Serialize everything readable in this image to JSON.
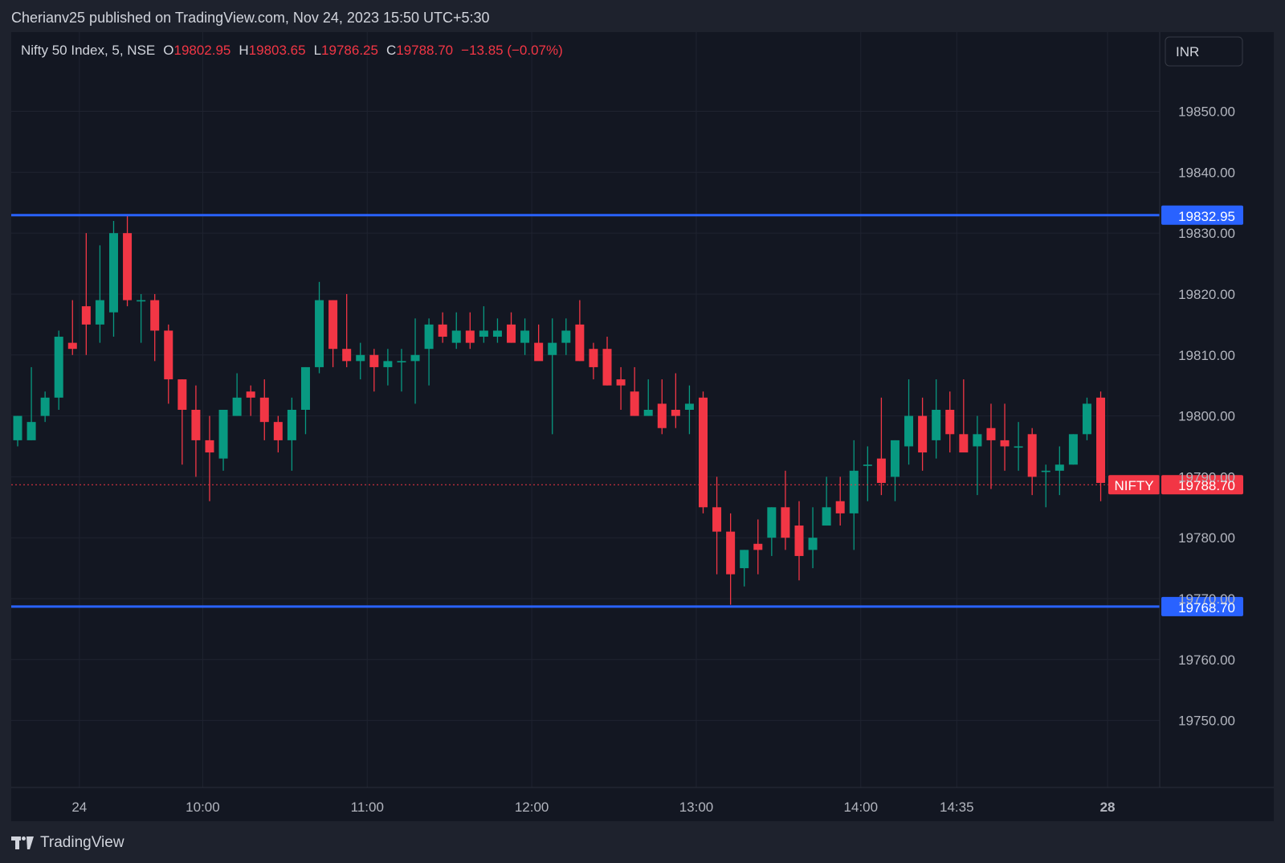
{
  "header": {
    "published_text": "Cherianv25 published on TradingView.com, Nov 24, 2023 15:50 UTC+5:30"
  },
  "footer": {
    "brand": "TradingView"
  },
  "currency_button": "INR",
  "chart_data": {
    "type": "candlestick",
    "symbol_info": {
      "name": "Nifty 50 Index, 5, NSE",
      "open_label": "O",
      "open": "19802.95",
      "high_label": "H",
      "high": "19803.65",
      "low_label": "L",
      "low": "19786.25",
      "close_label": "C",
      "close": "19788.70",
      "change": "−13.85 (−0.07%)"
    },
    "y_axis": {
      "range": [
        19739,
        19863
      ],
      "ticks": [
        "19850.00",
        "19840.00",
        "19830.00",
        "19820.00",
        "19810.00",
        "19800.00",
        "19790.00",
        "19780.00",
        "19770.00",
        "19760.00",
        "19750.00"
      ]
    },
    "x_axis": {
      "ticks": [
        {
          "label": "24",
          "bar": 4.5,
          "bold": false
        },
        {
          "label": "10:00",
          "bar": 13.5,
          "bold": false
        },
        {
          "label": "11:00",
          "bar": 25.5,
          "bold": false
        },
        {
          "label": "12:00",
          "bar": 37.5,
          "bold": false
        },
        {
          "label": "13:00",
          "bar": 49.5,
          "bold": false
        },
        {
          "label": "14:00",
          "bar": 61.5,
          "bold": false
        },
        {
          "label": "14:35",
          "bar": 68.5,
          "bold": false
        },
        {
          "label": "28",
          "bar": 79.5,
          "bold": true
        }
      ]
    },
    "horizontal_lines": [
      {
        "value": 19832.95,
        "label": "19832.95",
        "color": "#2962ff"
      },
      {
        "value": 19768.7,
        "label": "19768.70",
        "color": "#2962ff"
      }
    ],
    "last_price": {
      "value": 19788.7,
      "label": "19788.70",
      "symbol": "NIFTY",
      "color": "#f23645"
    },
    "colors": {
      "up": "#089981",
      "down": "#f23645"
    },
    "candles": [
      {
        "o": 19796,
        "h": 19800,
        "l": 19795,
        "c": 19800
      },
      {
        "o": 19796,
        "h": 19808,
        "l": 19796,
        "c": 19799
      },
      {
        "o": 19800,
        "h": 19804,
        "l": 19799,
        "c": 19803
      },
      {
        "o": 19803,
        "h": 19814,
        "l": 19801,
        "c": 19813
      },
      {
        "o": 19812,
        "h": 19819,
        "l": 19810,
        "c": 19811
      },
      {
        "o": 19818,
        "h": 19830,
        "l": 19810,
        "c": 19815
      },
      {
        "o": 19815,
        "h": 19828,
        "l": 19812,
        "c": 19819
      },
      {
        "o": 19817,
        "h": 19832,
        "l": 19813,
        "c": 19830
      },
      {
        "o": 19830,
        "h": 19833,
        "l": 19818,
        "c": 19819
      },
      {
        "o": 19819,
        "h": 19820,
        "l": 19812,
        "c": 19819
      },
      {
        "o": 19819,
        "h": 19820,
        "l": 19809,
        "c": 19814
      },
      {
        "o": 19814,
        "h": 19815,
        "l": 19802,
        "c": 19806
      },
      {
        "o": 19806,
        "h": 19806,
        "l": 19792,
        "c": 19801
      },
      {
        "o": 19801,
        "h": 19805,
        "l": 19790,
        "c": 19796
      },
      {
        "o": 19796,
        "h": 19800,
        "l": 19786,
        "c": 19794
      },
      {
        "o": 19793,
        "h": 19801,
        "l": 19791,
        "c": 19801
      },
      {
        "o": 19800,
        "h": 19807,
        "l": 19800,
        "c": 19803
      },
      {
        "o": 19804,
        "h": 19805,
        "l": 19800,
        "c": 19803
      },
      {
        "o": 19803,
        "h": 19806,
        "l": 19796,
        "c": 19799
      },
      {
        "o": 19799,
        "h": 19800,
        "l": 19794,
        "c": 19796
      },
      {
        "o": 19796,
        "h": 19803,
        "l": 19791,
        "c": 19801
      },
      {
        "o": 19801,
        "h": 19808,
        "l": 19797,
        "c": 19808
      },
      {
        "o": 19808,
        "h": 19822,
        "l": 19807,
        "c": 19819
      },
      {
        "o": 19819,
        "h": 19819,
        "l": 19808,
        "c": 19811
      },
      {
        "o": 19811,
        "h": 19820,
        "l": 19808,
        "c": 19809
      },
      {
        "o": 19809,
        "h": 19812,
        "l": 19806,
        "c": 19810
      },
      {
        "o": 19810,
        "h": 19811,
        "l": 19804,
        "c": 19808
      },
      {
        "o": 19808,
        "h": 19811,
        "l": 19805,
        "c": 19809
      },
      {
        "o": 19809,
        "h": 19811,
        "l": 19804,
        "c": 19809
      },
      {
        "o": 19809,
        "h": 19816,
        "l": 19802,
        "c": 19810
      },
      {
        "o": 19811,
        "h": 19816,
        "l": 19805,
        "c": 19815
      },
      {
        "o": 19815,
        "h": 19817,
        "l": 19812,
        "c": 19813
      },
      {
        "o": 19812,
        "h": 19817,
        "l": 19811,
        "c": 19814
      },
      {
        "o": 19814,
        "h": 19817,
        "l": 19811,
        "c": 19812
      },
      {
        "o": 19813,
        "h": 19818,
        "l": 19812,
        "c": 19814
      },
      {
        "o": 19813,
        "h": 19816,
        "l": 19812,
        "c": 19814
      },
      {
        "o": 19815,
        "h": 19817,
        "l": 19812,
        "c": 19812
      },
      {
        "o": 19812,
        "h": 19816,
        "l": 19810,
        "c": 19814
      },
      {
        "o": 19812,
        "h": 19815,
        "l": 19810,
        "c": 19809
      },
      {
        "o": 19810,
        "h": 19816,
        "l": 19797,
        "c": 19812
      },
      {
        "o": 19812,
        "h": 19816,
        "l": 19810,
        "c": 19814
      },
      {
        "o": 19815,
        "h": 19819,
        "l": 19809,
        "c": 19809
      },
      {
        "o": 19811,
        "h": 19812,
        "l": 19806,
        "c": 19808
      },
      {
        "o": 19811,
        "h": 19813,
        "l": 19805,
        "c": 19805
      },
      {
        "o": 19806,
        "h": 19808,
        "l": 19801,
        "c": 19805
      },
      {
        "o": 19804,
        "h": 19808,
        "l": 19800,
        "c": 19800
      },
      {
        "o": 19800,
        "h": 19806,
        "l": 19800,
        "c": 19801
      },
      {
        "o": 19802,
        "h": 19806,
        "l": 19797,
        "c": 19798
      },
      {
        "o": 19801,
        "h": 19807,
        "l": 19798,
        "c": 19800
      },
      {
        "o": 19801,
        "h": 19805,
        "l": 19797,
        "c": 19802
      },
      {
        "o": 19803,
        "h": 19804,
        "l": 19784,
        "c": 19785
      },
      {
        "o": 19785,
        "h": 19790,
        "l": 19774,
        "c": 19781
      },
      {
        "o": 19781,
        "h": 19784,
        "l": 19769,
        "c": 19774
      },
      {
        "o": 19775,
        "h": 19778,
        "l": 19772,
        "c": 19778
      },
      {
        "o": 19779,
        "h": 19783,
        "l": 19774,
        "c": 19778
      },
      {
        "o": 19780,
        "h": 19785,
        "l": 19777,
        "c": 19785
      },
      {
        "o": 19785,
        "h": 19791,
        "l": 19778,
        "c": 19780
      },
      {
        "o": 19782,
        "h": 19786,
        "l": 19773,
        "c": 19777
      },
      {
        "o": 19778,
        "h": 19785,
        "l": 19775,
        "c": 19780
      },
      {
        "o": 19782,
        "h": 19790,
        "l": 19782,
        "c": 19785
      },
      {
        "o": 19786,
        "h": 19790,
        "l": 19782,
        "c": 19784
      },
      {
        "o": 19784,
        "h": 19796,
        "l": 19778,
        "c": 19791
      },
      {
        "o": 19792,
        "h": 19795,
        "l": 19786,
        "c": 19792
      },
      {
        "o": 19793,
        "h": 19803,
        "l": 19787,
        "c": 19789
      },
      {
        "o": 19790,
        "h": 19796,
        "l": 19786,
        "c": 19796
      },
      {
        "o": 19795,
        "h": 19806,
        "l": 19792,
        "c": 19800
      },
      {
        "o": 19800,
        "h": 19803,
        "l": 19791,
        "c": 19794
      },
      {
        "o": 19796,
        "h": 19806,
        "l": 19793,
        "c": 19801
      },
      {
        "o": 19801,
        "h": 19804,
        "l": 19794,
        "c": 19797
      },
      {
        "o": 19797,
        "h": 19806,
        "l": 19795,
        "c": 19794
      },
      {
        "o": 19795,
        "h": 19800,
        "l": 19787,
        "c": 19797
      },
      {
        "o": 19798,
        "h": 19802,
        "l": 19788,
        "c": 19796
      },
      {
        "o": 19796,
        "h": 19802,
        "l": 19791,
        "c": 19795
      },
      {
        "o": 19795,
        "h": 19799,
        "l": 19791,
        "c": 19795
      },
      {
        "o": 19797,
        "h": 19798,
        "l": 19787,
        "c": 19790
      },
      {
        "o": 19791,
        "h": 19792,
        "l": 19785,
        "c": 19791
      },
      {
        "o": 19791,
        "h": 19795,
        "l": 19787,
        "c": 19792
      },
      {
        "o": 19792,
        "h": 19797,
        "l": 19792,
        "c": 19797
      },
      {
        "o": 19797,
        "h": 19803,
        "l": 19796,
        "c": 19802
      },
      {
        "o": 19803,
        "h": 19804,
        "l": 19786,
        "c": 19789
      }
    ]
  }
}
